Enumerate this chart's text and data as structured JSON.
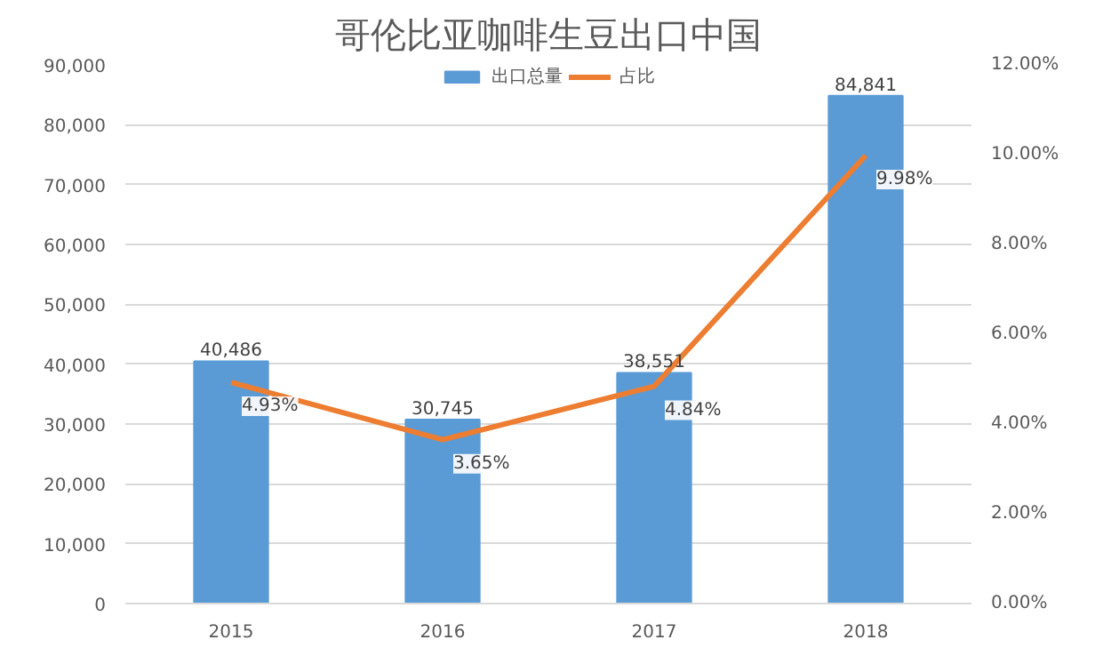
{
  "chart_data": {
    "type": "bar",
    "title": "哥伦比亚咖啡生豆出口中国",
    "categories": [
      "2015",
      "2016",
      "2017",
      "2018"
    ],
    "series": [
      {
        "name": "出口总量",
        "color": "#5b9bd5",
        "values": [
          40486,
          30745,
          38551,
          84841
        ],
        "value_labels": [
          "40,486",
          "30,745",
          "38,551",
          "84,841"
        ]
      },
      {
        "name": "占比",
        "type": "line",
        "axis": "y2",
        "color": "#ed7d31",
        "values": [
          4.93,
          3.65,
          4.84,
          9.98
        ],
        "value_labels": [
          "4.93%",
          "3.65%",
          "4.84%",
          "9.98%"
        ]
      }
    ],
    "ylim": [
      0,
      90000
    ],
    "yticks": [
      {
        "value": 0,
        "label": "0"
      },
      {
        "value": 10000,
        "label": "10,000"
      },
      {
        "value": 20000,
        "label": "20,000"
      },
      {
        "value": 30000,
        "label": "30,000"
      },
      {
        "value": 40000,
        "label": "40,000"
      },
      {
        "value": 50000,
        "label": "50,000"
      },
      {
        "value": 60000,
        "label": "60,000"
      },
      {
        "value": 70000,
        "label": "70,000"
      },
      {
        "value": 80000,
        "label": "80,000"
      },
      {
        "value": 90000,
        "label": "90,000"
      }
    ],
    "y2lim": [
      0,
      12
    ],
    "y2ticks": [
      {
        "value": 0,
        "label": "0.00%"
      },
      {
        "value": 2,
        "label": "2.00%"
      },
      {
        "value": 4,
        "label": "4.00%"
      },
      {
        "value": 6,
        "label": "6.00%"
      },
      {
        "value": 8,
        "label": "8.00%"
      },
      {
        "value": 10,
        "label": "10.00%"
      },
      {
        "value": 12,
        "label": "12.00%"
      }
    ],
    "grid": "y",
    "legend": "top"
  }
}
